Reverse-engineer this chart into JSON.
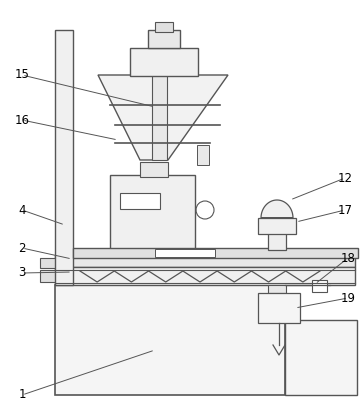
{
  "background_color": "#ffffff",
  "line_color": "#555555",
  "label_color": "#000000",
  "line_width": 0.9
}
